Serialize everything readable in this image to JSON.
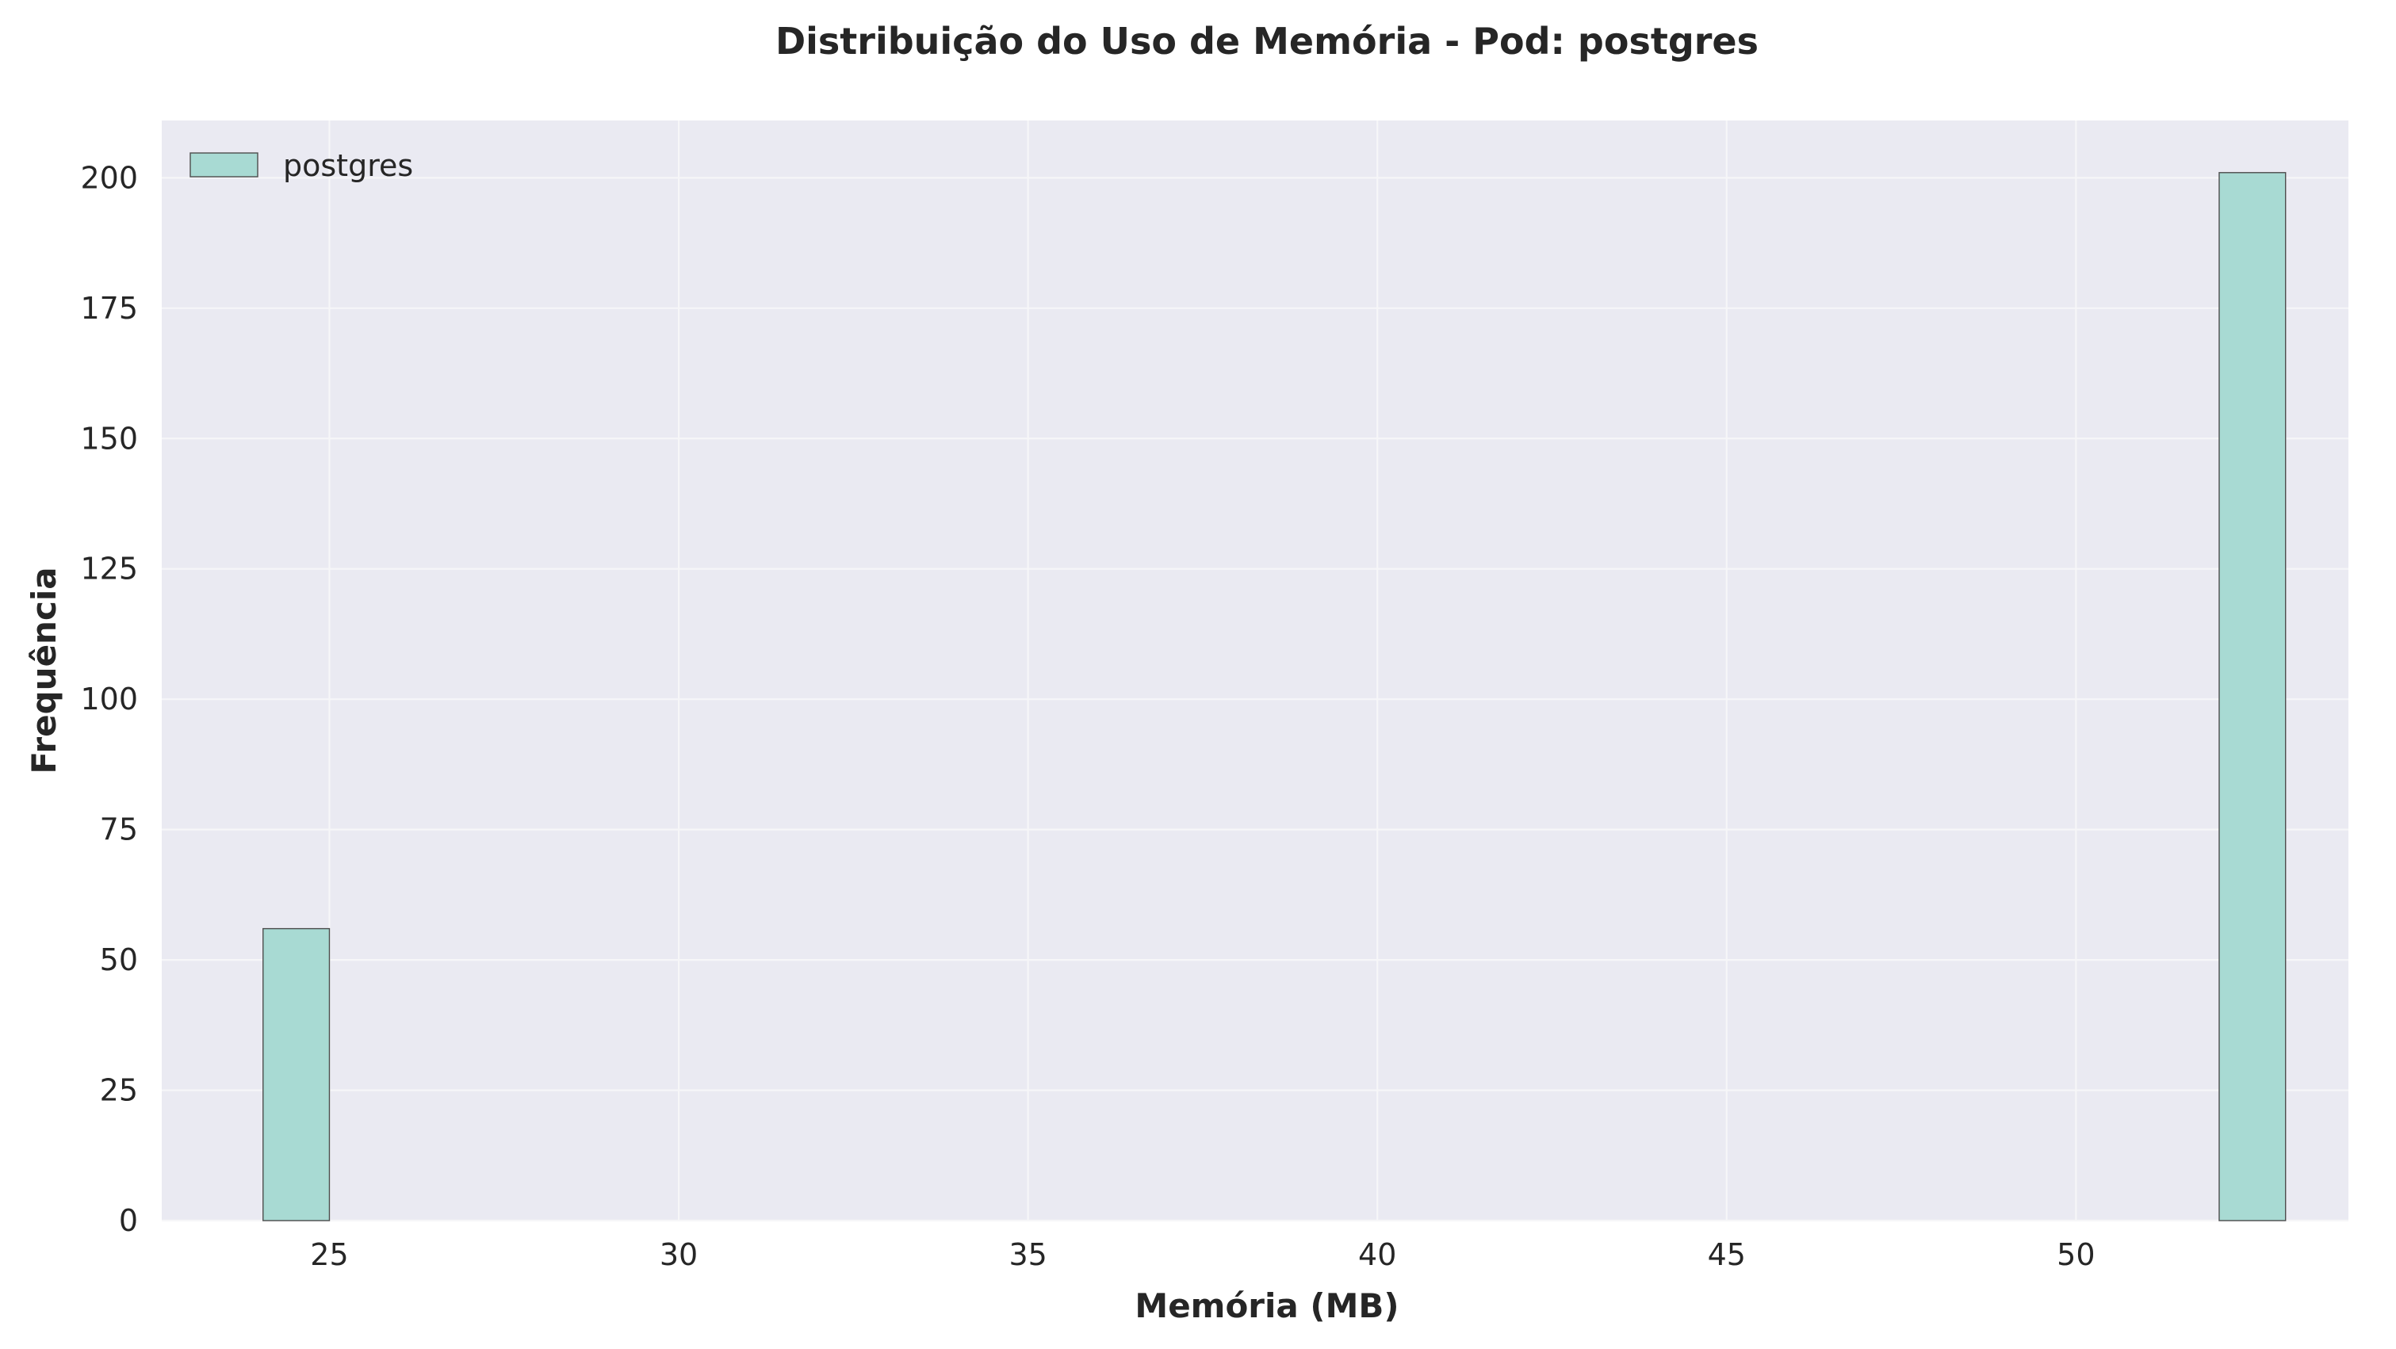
{
  "chart_data": {
    "type": "bar",
    "subtype": "histogram",
    "title": "Distribuição do Uso de Memória - Pod: postgres",
    "xlabel": "Memória (MB)",
    "ylabel": "Frequência",
    "xlim": [
      22.6,
      53.9
    ],
    "ylim": [
      0,
      211
    ],
    "x_ticks": [
      25,
      30,
      35,
      40,
      45,
      50
    ],
    "y_ticks": [
      0,
      25,
      50,
      75,
      100,
      125,
      150,
      175,
      200
    ],
    "grid": true,
    "legend_position": "top-left",
    "series": [
      {
        "name": "postgres",
        "color": "#a8dad3",
        "edge_color": "#4d4d4d",
        "bins": [
          {
            "x0": 24.05,
            "x1": 25.0,
            "count": 56
          },
          {
            "x0": 52.05,
            "x1": 53.0,
            "count": 201
          }
        ]
      }
    ],
    "colors": {
      "plot_background": "#eaeaf2",
      "grid": "#f6f6f8",
      "text": "#262626"
    }
  }
}
